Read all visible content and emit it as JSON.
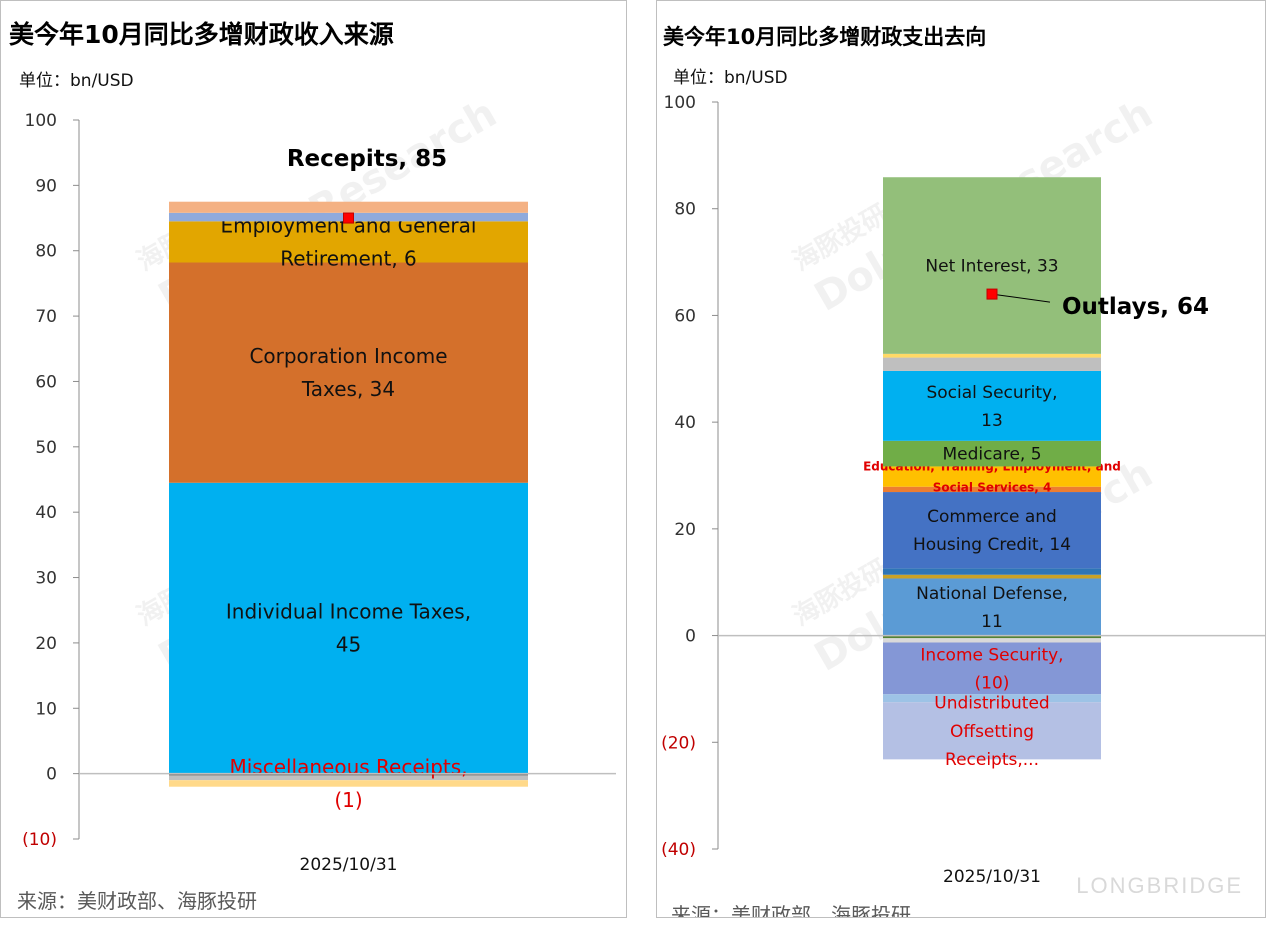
{
  "left": {
    "title": "美今年10月同比多增财政收入来源",
    "unit": "单位：bn/USD",
    "source": "来源：美财政部、海豚投研",
    "watermark": [
      "海豚投研",
      "DolphinResearch"
    ]
  },
  "right": {
    "title": "美今年10月同比多增财政支出去向",
    "unit": "单位：bn/USD",
    "source": "来源：美财政部、海豚投研",
    "watermark": [
      "海豚投研",
      "DolphinResearch"
    ],
    "brand": "LONGBRIDGE"
  },
  "chart_data": [
    {
      "type": "bar",
      "stacked": true,
      "categories": [
        "2025/10/31"
      ],
      "ylim": [
        -10,
        100
      ],
      "yticks": [
        -10,
        0,
        10,
        20,
        30,
        40,
        50,
        60,
        70,
        80,
        90,
        100
      ],
      "ytick_labels": [
        "(10)",
        "0",
        "10",
        "20",
        "30",
        "40",
        "50",
        "60",
        "70",
        "80",
        "90",
        "100"
      ],
      "negative_tick_color": "#c00000",
      "series": [
        {
          "value": 44.5,
          "color": "#00b0f0",
          "label": "Individual Income Taxes, 45",
          "label_color": "#111111"
        },
        {
          "value": 33.7,
          "color": "#d4702b",
          "label": "Corporation Income Taxes, 34",
          "label_color": "#111111"
        },
        {
          "value": 6.3,
          "color": "#e2a600",
          "label": "Employment and General Retirement, 6",
          "label_color": "#111111"
        },
        {
          "value": 1.3,
          "color": "#8faadc"
        },
        {
          "value": 1.7,
          "color": "#f4b183"
        },
        {
          "value": -0.3,
          "color": "#7f7f7f"
        },
        {
          "value": -0.7,
          "color": "#bfbfbf"
        },
        {
          "value": -1.0,
          "color": "#ffd98a",
          "label": "Miscellaneous Receipts, (1)",
          "label_color": "#e00000"
        }
      ],
      "total": {
        "value": 85,
        "label": "Recepits, 85"
      }
    },
    {
      "type": "bar",
      "stacked": true,
      "categories": [
        "2025/10/31"
      ],
      "ylim": [
        -40,
        100
      ],
      "yticks": [
        -40,
        -20,
        0,
        20,
        40,
        60,
        80,
        100
      ],
      "ytick_labels": [
        "(40)",
        "(20)",
        "0",
        "20",
        "40",
        "60",
        "80",
        "100"
      ],
      "negative_tick_color": "#c00000",
      "series": [
        {
          "value": 10.7,
          "color": "#5b9bd5",
          "label": "National Defense, 11",
          "label_color": "#111111"
        },
        {
          "value": 0.7,
          "color": "#c9a227"
        },
        {
          "value": 1.2,
          "color": "#2e75b6"
        },
        {
          "value": 14.3,
          "color": "#4472c4",
          "label": "Commerce and Housing Credit, 14",
          "label_color": "#111111"
        },
        {
          "value": 1.0,
          "color": "#ed7d31"
        },
        {
          "value": 3.8,
          "color": "#ffc000",
          "label": "Education, Training, Employment, and Social Services, 4",
          "label_color": "#e00000"
        },
        {
          "value": 4.8,
          "color": "#70ad47",
          "label": "Medicare, 5",
          "label_color": "#111111"
        },
        {
          "value": 13.1,
          "color": "#00b0f0",
          "label": "Social Security, 13",
          "label_color": "#111111"
        },
        {
          "value": 2.5,
          "color": "#bfbfbf"
        },
        {
          "value": 0.7,
          "color": "#ffd966"
        },
        {
          "value": 33.1,
          "color": "#93bf7a",
          "label": "Net Interest, 33",
          "label_color": "#111111"
        },
        {
          "value": -0.5,
          "color": "#548235"
        },
        {
          "value": -0.8,
          "color": "#d9d9d9"
        },
        {
          "value": -9.7,
          "color": "#8497d6",
          "label": "Income Security, (10)",
          "label_color": "#e00000"
        },
        {
          "value": -1.5,
          "color": "#9dc3e6"
        },
        {
          "value": -10.7,
          "color": "#b4c0e4",
          "label": "Undistributed Offsetting Receipts,...",
          "label_color": "#e00000"
        }
      ],
      "total": {
        "value": 64,
        "label": "Outlays, 64"
      }
    }
  ]
}
